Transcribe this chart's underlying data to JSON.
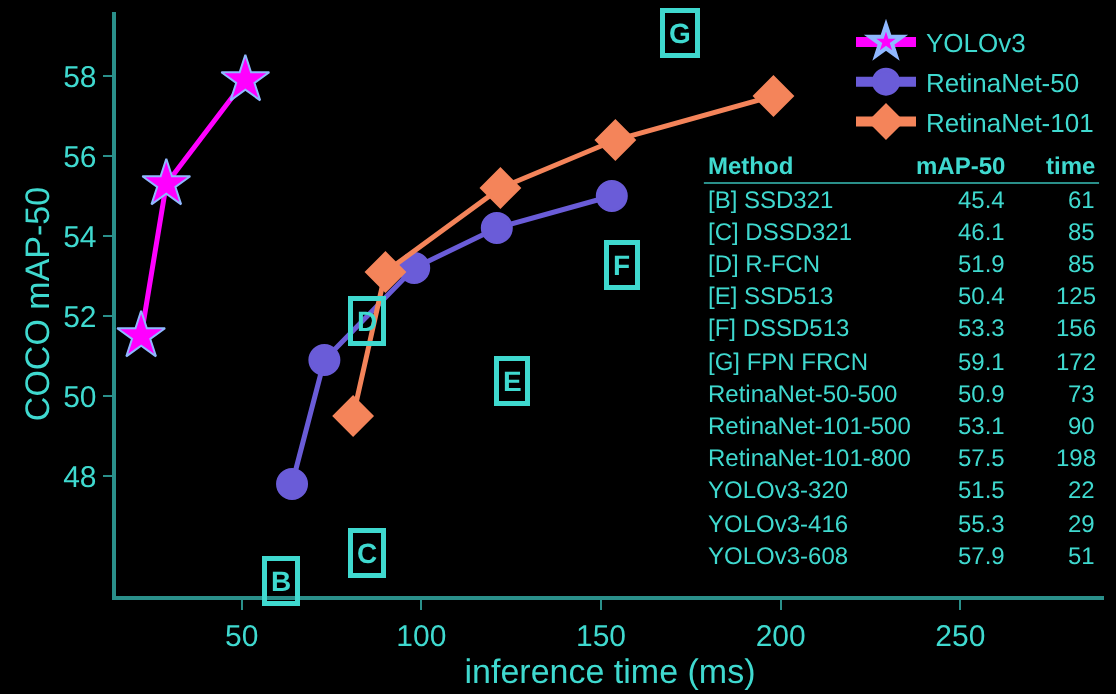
{
  "chart_data": {
    "type": "line",
    "xlabel": "inference time (ms)",
    "ylabel": "COCO mAP-50",
    "xlim": [
      15,
      290
    ],
    "ylim": [
      45,
      59.6
    ],
    "xticks": [
      50,
      100,
      150,
      200,
      250
    ],
    "yticks": [
      48,
      50,
      52,
      54,
      56,
      58
    ],
    "grid": false,
    "legend": "top right",
    "line_style": "solid",
    "series": [
      {
        "name": "YOLOv3",
        "color": "#ff00ff",
        "marker": "star",
        "x": [
          22,
          29,
          51
        ],
        "values": [
          51.5,
          55.3,
          57.9
        ]
      },
      {
        "name": "RetinaNet-50",
        "color": "#6a5cd8",
        "marker": "circle",
        "x": [
          64,
          73,
          98,
          121,
          153
        ],
        "values": [
          47.8,
          50.9,
          53.2,
          54.2,
          55.0
        ]
      },
      {
        "name": "RetinaNet-101",
        "color": "#f4845a",
        "marker": "diamond",
        "x": [
          81,
          90,
          122,
          154,
          198
        ],
        "values": [
          49.5,
          53.1,
          55.2,
          56.4,
          57.5
        ]
      }
    ],
    "annotations": [
      {
        "text": "B",
        "x": 61,
        "y": 45.4
      },
      {
        "text": "C",
        "x": 85,
        "y": 46.1
      },
      {
        "text": "D",
        "x": 85,
        "y": 51.9
      },
      {
        "text": "E",
        "x": 125,
        "y": 50.4
      },
      {
        "text": "F",
        "x": 156,
        "y": 53.3
      },
      {
        "text": "G",
        "x": 172,
        "y": 59.1
      },
      "Method",
      "mAP-50",
      "time",
      "[B] SSD321",
      "45.4",
      "61",
      "[C] DSSD321",
      "46.1",
      "85",
      "[D] R-FCN",
      "51.9",
      "85",
      "[E] SSD513",
      "50.4",
      "125",
      "[F] DSSD513",
      "53.3",
      "156",
      "[G] FPN FRCN",
      "59.1",
      "172",
      "RetinaNet-50-500",
      "50.9",
      "73",
      "RetinaNet-101-500",
      "53.1",
      "90",
      "RetinaNet-101-800",
      "57.5",
      "198",
      "YOLOv3-320",
      "51.5",
      "22",
      "YOLOv3-416",
      "55.3",
      "29",
      "YOLOv3-608",
      "57.9",
      "51"
    ]
  }
}
